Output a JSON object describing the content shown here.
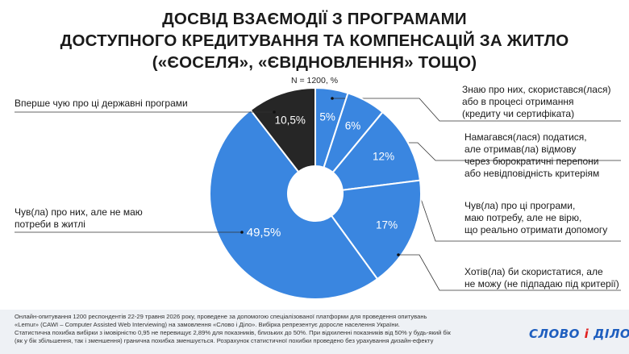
{
  "chart_data": {
    "type": "pie",
    "variant": "donut",
    "title_lines": [
      "ДОСВІД ВЗАЄМОДІЇ З ПРОГРАМАМИ",
      "ДОСТУПНОГО КРЕДИТУВАННЯ ТА КОМПЕНСАЦІЙ ЗА ЖИТЛО",
      "(«ЄОСЕЛЯ», «ЄВІДНОВЛЕННЯ» ТОЩО)"
    ],
    "subtitle": "N = 1200, %",
    "slices": [
      {
        "value": 5,
        "label": "5%",
        "color": "#3a86e0",
        "category_lines": [
          "Знаю про них, скористався(лася)",
          "або в процесі отримання",
          "(кредиту чи сертифіката)"
        ]
      },
      {
        "value": 6,
        "label": "6%",
        "color": "#3a86e0",
        "category_lines": [
          "Намагався(лася) податися,",
          "але отримав(ла) відмову",
          "через бюрократичні перепони",
          "або невідповідність критеріям"
        ]
      },
      {
        "value": 12,
        "label": "12%",
        "color": "#3a86e0",
        "category_lines": [
          "Чув(ла) про ці програми,",
          "маю потребу, але не вірю,",
          "що реально отримати допомогу"
        ]
      },
      {
        "value": 17,
        "label": "17%",
        "color": "#3a86e0",
        "category_lines": [
          "Хотів(ла) би скористатися, але",
          "не можу (не підпадаю під критерії)"
        ]
      },
      {
        "value": 49.5,
        "label": "49,5%",
        "color": "#3a86e0",
        "category_lines": [
          "Чув(ла) про них, але не маю",
          "потреби в житлі"
        ]
      },
      {
        "value": 10.5,
        "label": "10,5%",
        "color": "#262626",
        "category_lines": [
          "Вперше чую про ці державні програми"
        ]
      }
    ]
  },
  "footnote_lines": [
    "Онлайн-опитування 1200 респондентів 22-29 травня 2026 року, проведене за допомогою спеціалізованої платформи для проведення опитувань",
    "«Lemur» (CAWI – Computer Assisted Web Interviewing) на замовлення «Слово і Діло». Вибірка репрезентує доросле населення України.",
    "Статистична похибка вибірки з імовірністю 0,95 не перевищує 2,89% для показників, близьких до 50%. При відхиленні показників від 50% у будь-який бік",
    "(як у бік збільшення, так і зменшення) гранична похибка зменшується. Розрахунок статистичної похибки проведено без урахування дизайн-ефекту"
  ],
  "logo": {
    "part1": "СЛОВО",
    "part2": "і",
    "part3": "ДІЛО"
  }
}
